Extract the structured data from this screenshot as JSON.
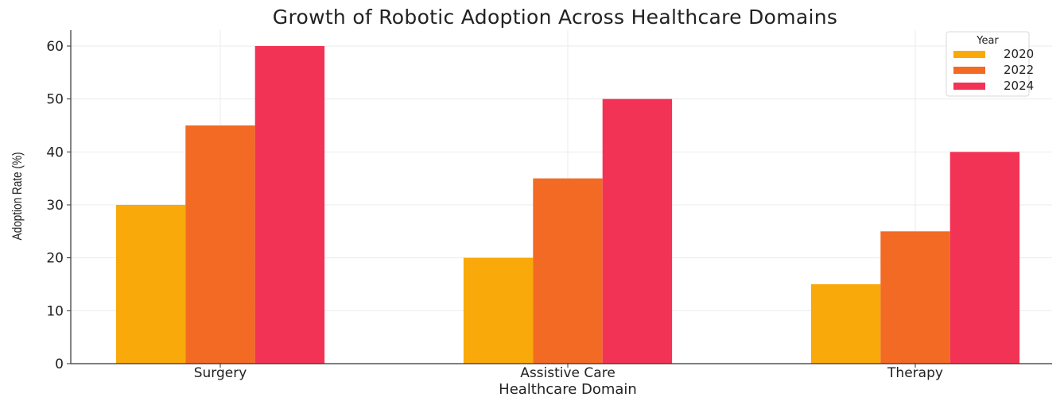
{
  "chart_data": {
    "type": "bar",
    "title": "Growth of Robotic Adoption Across Healthcare Domains",
    "xlabel": "Healthcare Domain",
    "ylabel": "Adoption Rate (%)",
    "categories": [
      "Surgery",
      "Assistive Care",
      "Therapy"
    ],
    "series": [
      {
        "name": "2020",
        "color": "#f9a90a",
        "values": [
          30,
          20,
          15
        ]
      },
      {
        "name": "2022",
        "color": "#f26a24",
        "values": [
          45,
          35,
          25
        ]
      },
      {
        "name": "2024",
        "color": "#f23355",
        "values": [
          60,
          50,
          40
        ]
      }
    ],
    "ylim": [
      0,
      63
    ],
    "yticks": [
      0,
      10,
      20,
      30,
      40,
      50,
      60
    ],
    "grid": true,
    "legend": {
      "title": "Year",
      "placement": "top-right"
    }
  }
}
